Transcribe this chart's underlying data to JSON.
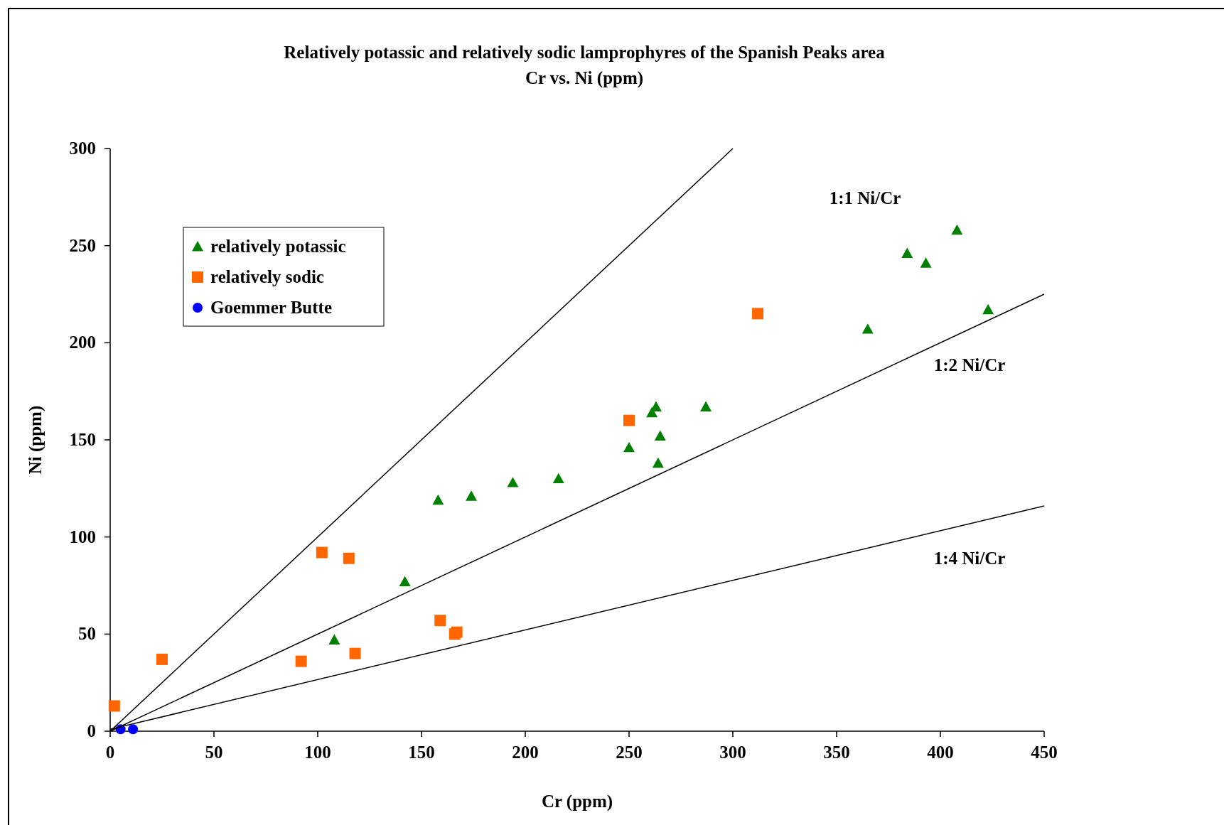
{
  "chart_data": {
    "type": "scatter",
    "title": "Relatively potassic and relatively sodic lamprophyres of the Spanish Peaks area",
    "subtitle": "Cr vs. Ni (ppm)",
    "xlabel": "Cr (ppm)",
    "ylabel": "Ni (ppm)",
    "xlim": [
      0,
      450
    ],
    "xticks": [
      0,
      50,
      100,
      150,
      200,
      250,
      300,
      350,
      400,
      450
    ],
    "ylim": [
      0,
      300
    ],
    "yticks": [
      0,
      50,
      100,
      150,
      200,
      250,
      300
    ],
    "grid": false,
    "legend": "top left",
    "series": [
      {
        "name": "relatively potassic",
        "color": "#008000",
        "marker": "triangle",
        "x": [
          408,
          384,
          393,
          423,
          365,
          263,
          261,
          287,
          265,
          250,
          264,
          216,
          194,
          174,
          158,
          142,
          108
        ],
        "values": [
          258,
          246,
          241,
          217,
          207,
          167,
          164,
          167,
          152,
          146,
          138,
          130,
          128,
          121,
          119,
          77,
          47
        ]
      },
      {
        "name": "relatively sodic",
        "color": "#ff6600",
        "marker": "square",
        "x": [
          312,
          250,
          102,
          115,
          159,
          167,
          166,
          118,
          92,
          25,
          2
        ],
        "values": [
          215,
          160,
          92,
          89,
          57,
          51,
          50,
          40,
          36,
          37,
          13
        ]
      },
      {
        "name": "Goemmer Butte",
        "color": "#0000ff",
        "marker": "circle",
        "x": [
          5,
          11
        ],
        "values": [
          1,
          1
        ]
      },
      {
        "type": "line",
        "color": "#000000",
        "marker": "none",
        "x": [
          0,
          300
        ],
        "values": [
          0,
          300
        ]
      },
      {
        "type": "line",
        "color": "#000000",
        "marker": "none",
        "x": [
          0,
          450
        ],
        "values": [
          0,
          225
        ]
      },
      {
        "type": "line",
        "color": "#000000",
        "marker": "none",
        "x": [
          0,
          450
        ],
        "values": [
          1,
          116
        ]
      }
    ],
    "annotations": [
      "1:1 Ni/Cr",
      "1:2 Ni/Cr",
      "1:4 Ni/Cr"
    ]
  }
}
